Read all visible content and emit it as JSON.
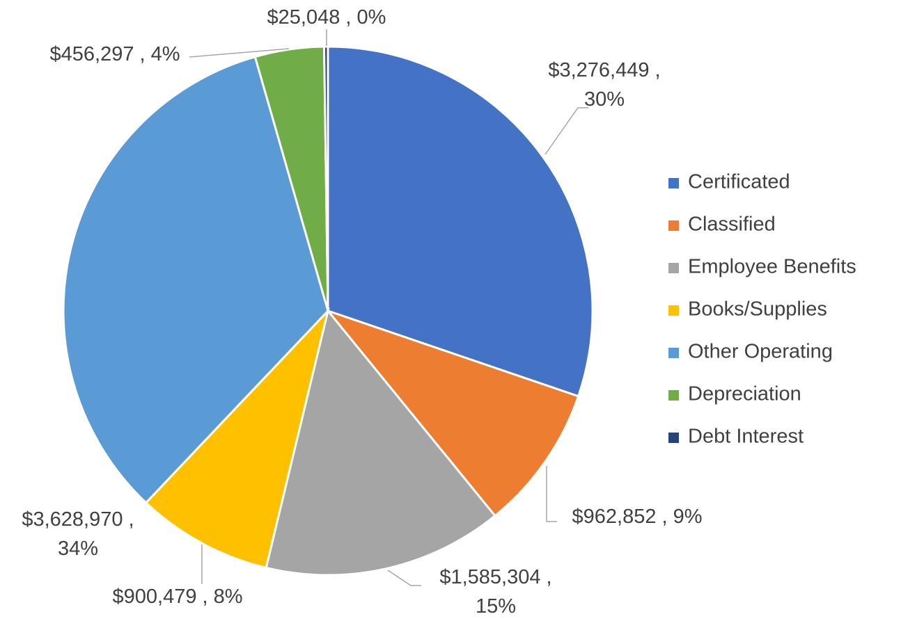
{
  "chart_data": {
    "type": "pie",
    "categories": [
      "Certificated",
      "Classified",
      "Employee Benefits",
      "Books/Supplies",
      "Other Operating",
      "Depreciation",
      "Debt Interest"
    ],
    "values": [
      3276449,
      962852,
      1585304,
      900479,
      3628970,
      456297,
      25048
    ],
    "value_labels": [
      "$3,276,449 , 30%",
      "$962,852 , 9%",
      "$1,585,304 , 15%",
      "$900,479 , 8%",
      "$3,628,970 , 34%",
      "$456,297 , 4%",
      "$25,048 , 0%"
    ],
    "colors": [
      "#4472c4",
      "#ed7d31",
      "#a5a5a5",
      "#ffc000",
      "#5b9bd5",
      "#70ad47",
      "#264478"
    ],
    "legend": "right"
  }
}
